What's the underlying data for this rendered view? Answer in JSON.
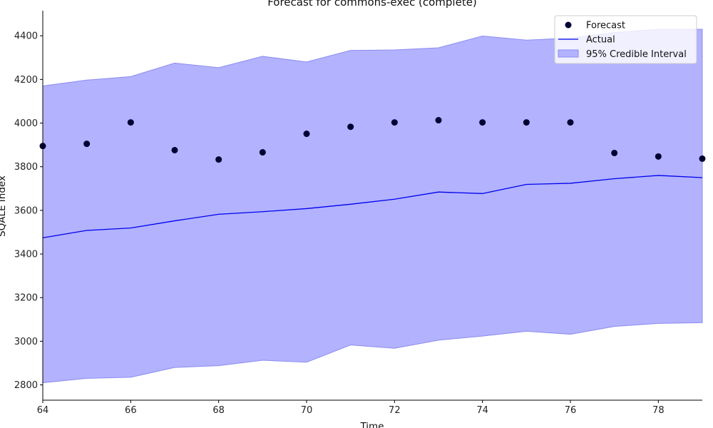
{
  "chart_data": {
    "type": "line",
    "title": "Forecast for commons-exec (complete)",
    "xlabel": "Time",
    "ylabel": "SQALE Index",
    "xlim": [
      64,
      79
    ],
    "ylim": [
      2730,
      4515
    ],
    "x_ticks": [
      64,
      66,
      68,
      70,
      72,
      74,
      76,
      78
    ],
    "y_ticks": [
      2800,
      3000,
      3200,
      3400,
      3600,
      3800,
      4000,
      4200,
      4400
    ],
    "legend_position": "top-right",
    "x": [
      64,
      65,
      66,
      67,
      68,
      69,
      70,
      71,
      72,
      73,
      74,
      75,
      76,
      77,
      78,
      79
    ],
    "series": [
      {
        "name": "Forecast",
        "kind": "scatter",
        "color": "#000033",
        "values": [
          3895,
          3905,
          4003,
          3876,
          3833,
          3866,
          3951,
          3983,
          4003,
          4013,
          4003,
          4003,
          4003,
          3863,
          3847,
          3837
        ]
      },
      {
        "name": "Actual",
        "kind": "line",
        "color": "#0000ee",
        "values": [
          3474,
          3508,
          3519,
          3552,
          3582,
          3594,
          3608,
          3628,
          3651,
          3684,
          3677,
          3719,
          3724,
          3745,
          3760,
          3750
        ]
      },
      {
        "name": "95% Credible Interval",
        "kind": "band",
        "color": "#b2b2ff",
        "lower": [
          2810,
          2830,
          2835,
          2880,
          2888,
          2913,
          2904,
          2983,
          2968,
          3005,
          3024,
          3046,
          3032,
          3068,
          3082,
          3085
        ],
        "upper": [
          4170,
          4197,
          4213,
          4275,
          4254,
          4306,
          4280,
          4333,
          4335,
          4345,
          4399,
          4380,
          4390,
          4415,
          4430,
          4430
        ]
      }
    ]
  }
}
